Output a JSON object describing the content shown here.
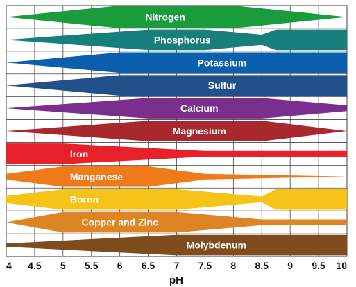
{
  "chart_data": {
    "type": "area",
    "xlabel": "pH",
    "xlim": [
      4,
      10
    ],
    "ticks": [
      "4",
      "4.5",
      "5",
      "5.5",
      "6",
      "6.5",
      "7",
      "7.5",
      "8",
      "8.5",
      "9",
      "9.5",
      "10"
    ],
    "grid": true,
    "series": [
      {
        "name": "Nitrogen",
        "color": "#1a9b3c",
        "x": [
          4,
          6,
          8,
          10
        ],
        "width": [
          0.0,
          1.0,
          1.0,
          0.0
        ]
      },
      {
        "name": "Phosphorus",
        "color": "#17807c",
        "x": [
          4,
          6.5,
          7.5,
          8.5,
          8.75,
          10
        ],
        "width": [
          0.0,
          0.9,
          0.9,
          0.45,
          0.9,
          0.9
        ]
      },
      {
        "name": "Potassium",
        "color": "#0a5fae",
        "x": [
          4,
          6,
          10
        ],
        "width": [
          0.0,
          0.9,
          0.9
        ]
      },
      {
        "name": "Sulfur",
        "color": "#22508a",
        "x": [
          4,
          6,
          10
        ],
        "width": [
          0.0,
          0.9,
          0.9
        ]
      },
      {
        "name": "Calcium",
        "color": "#7a2f8e",
        "x": [
          4,
          6.5,
          8.5,
          10
        ],
        "width": [
          0.0,
          0.9,
          0.9,
          0.25
        ]
      },
      {
        "name": "Magnesium",
        "color": "#a8282d",
        "x": [
          4,
          6.5,
          8.5,
          10
        ],
        "width": [
          0.0,
          0.9,
          0.9,
          0.0
        ]
      },
      {
        "name": "Iron",
        "color": "#e8202a",
        "x": [
          4,
          5,
          7.5,
          10
        ],
        "width": [
          0.9,
          0.9,
          0.25,
          0.25
        ]
      },
      {
        "name": "Manganese",
        "color": "#ee7a1a",
        "x": [
          4,
          5,
          6.5,
          7.5,
          10
        ],
        "width": [
          0.25,
          0.9,
          0.9,
          0.25,
          0.0
        ]
      },
      {
        "name": "Boron",
        "color": "#f5c416",
        "x": [
          4,
          5,
          7,
          8.5,
          8.75,
          10
        ],
        "width": [
          0.3,
          0.9,
          0.9,
          0.25,
          0.9,
          0.9
        ]
      },
      {
        "name": "Copper and Zinc",
        "color": "#dd8423",
        "x": [
          4,
          5,
          7,
          8.5,
          10
        ],
        "width": [
          0.0,
          0.9,
          0.9,
          0.25,
          0.25
        ]
      },
      {
        "name": "Molybdenum",
        "color": "#7f4c1e",
        "x": [
          4,
          7,
          10
        ],
        "width": [
          0.15,
          0.9,
          0.9
        ]
      }
    ]
  }
}
